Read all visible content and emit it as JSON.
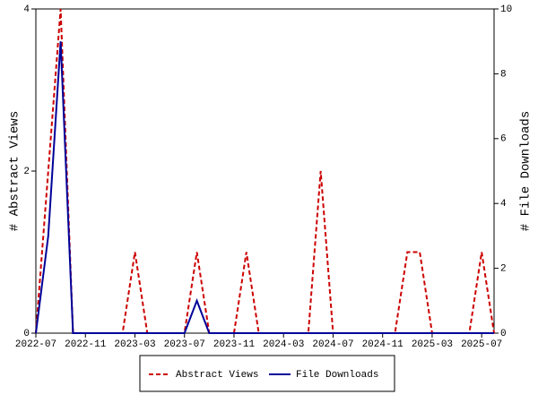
{
  "chart_data": {
    "type": "line",
    "ylabel": "# Abstract Views",
    "y2label": "# File Downloads",
    "x": [
      "2022-07",
      "2022-08",
      "2022-09",
      "2022-10",
      "2022-11",
      "2022-12",
      "2023-01",
      "2023-02",
      "2023-03",
      "2023-04",
      "2023-05",
      "2023-06",
      "2023-07",
      "2023-08",
      "2023-09",
      "2023-10",
      "2023-11",
      "2023-12",
      "2024-01",
      "2024-02",
      "2024-03",
      "2024-04",
      "2024-05",
      "2024-06",
      "2024-07",
      "2024-08",
      "2024-09",
      "2024-10",
      "2024-11",
      "2024-12",
      "2025-01",
      "2025-02",
      "2025-03",
      "2025-04",
      "2025-05",
      "2025-06",
      "2025-07",
      "2025-08"
    ],
    "xticks": [
      "2022-07",
      "2022-11",
      "2023-03",
      "2023-07",
      "2023-11",
      "2024-03",
      "2024-07",
      "2024-11",
      "2025-03",
      "2025-07"
    ],
    "ylim": [
      0,
      4
    ],
    "yticks": [
      0,
      2,
      4
    ],
    "y2lim": [
      0,
      10
    ],
    "y2ticks": [
      0,
      2,
      4,
      6,
      8,
      10
    ],
    "series": [
      {
        "name": "Abstract Views",
        "color": "#cc0000",
        "dashed": true,
        "values": [
          0,
          2,
          4,
          0,
          0,
          0,
          0,
          0,
          1,
          0,
          0,
          0,
          0,
          1,
          0,
          0,
          0,
          1,
          0,
          0,
          0,
          0,
          0,
          2,
          0,
          0,
          0,
          0,
          0,
          0,
          1,
          1,
          0,
          0,
          0,
          0,
          1,
          0
        ]
      },
      {
        "name": "File Downloads",
        "color": "#000099",
        "axis": "y2",
        "values": [
          0,
          3,
          9,
          0,
          0,
          0,
          0,
          0,
          0,
          0,
          0,
          0,
          0,
          1,
          0,
          0,
          0,
          0,
          0,
          0,
          0,
          0,
          0,
          0,
          0,
          0,
          0,
          0,
          0,
          0,
          0,
          0,
          0,
          0,
          0,
          0,
          0,
          0
        ]
      }
    ],
    "legend": "bottom"
  }
}
